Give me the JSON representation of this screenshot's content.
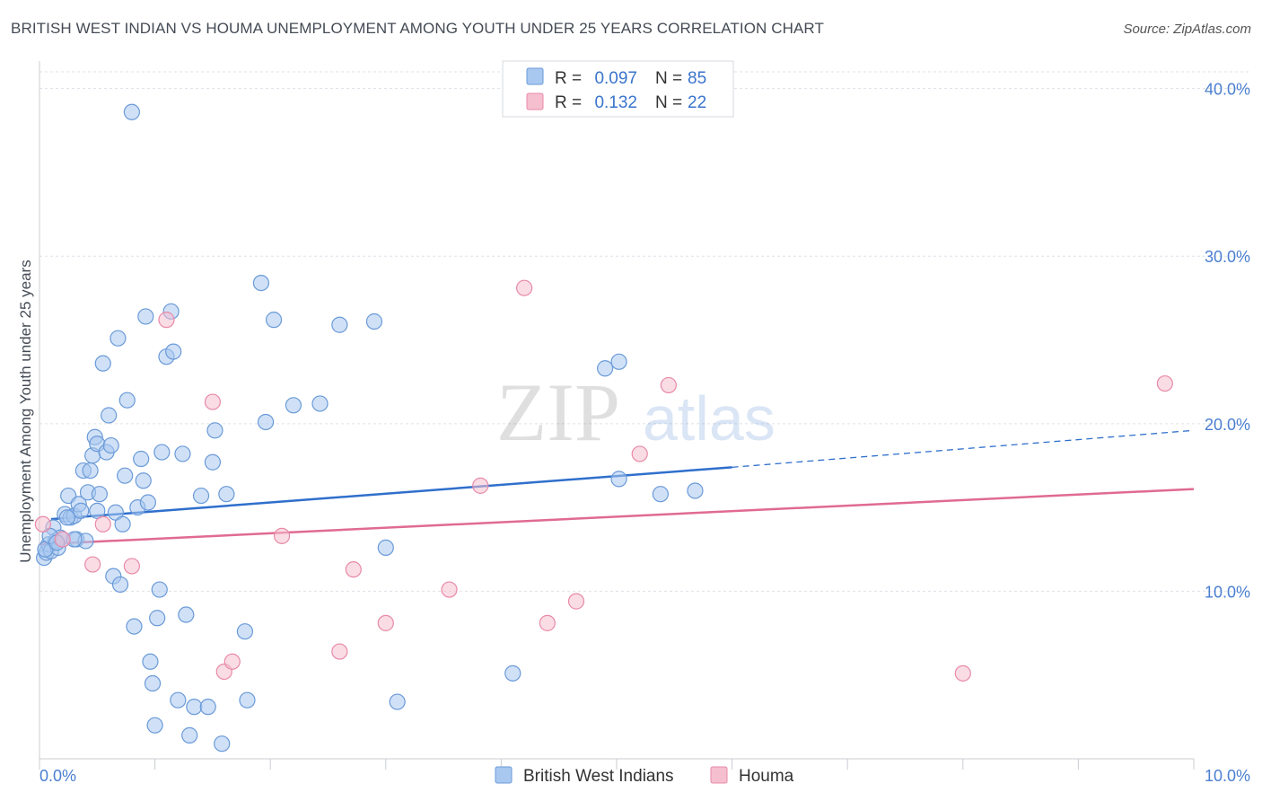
{
  "title": "BRITISH WEST INDIAN VS HOUMA UNEMPLOYMENT AMONG YOUTH UNDER 25 YEARS CORRELATION CHART",
  "source": "Source: ZipAtlas.com",
  "watermark": {
    "zip": "ZIP",
    "atlas": "atlas"
  },
  "colors": {
    "blue_fill": "#a9c8f0",
    "blue_stroke": "#6a9ad8",
    "blue_line": "#2f6fcc",
    "pink_fill": "#f6bfd0",
    "pink_stroke": "#e88aa8",
    "pink_line": "#e06a92",
    "grid": "#dde1e8",
    "label": "#4a7fd0"
  },
  "legend": {
    "rows": [
      {
        "r_label": "R = ",
        "r_value": "0.097",
        "n_label": "N = ",
        "n_value": "85"
      },
      {
        "r_label": "R = ",
        "r_value": "0.132",
        "n_label": "N = ",
        "n_value": "22"
      }
    ]
  },
  "chart_data": {
    "type": "scatter",
    "title": "BRITISH WEST INDIAN VS HOUMA UNEMPLOYMENT AMONG YOUTH UNDER 25 YEARS CORRELATION CHART",
    "xlabel": "",
    "ylabel": "Unemployment Among Youth under 25 years",
    "xlim": [
      0,
      10
    ],
    "ylim": [
      0,
      41
    ],
    "x_tick_labels": [
      "0.0%",
      "10.0%"
    ],
    "y_ticks": [
      10,
      20,
      30,
      40
    ],
    "y_tick_labels": [
      "10.0%",
      "20.0%",
      "30.0%",
      "40.0%"
    ],
    "grid": true,
    "legend_position": "bottom-center",
    "series": [
      {
        "name": "British West Indians",
        "r": 0.097,
        "n": 85,
        "trend": {
          "x0": 0.1,
          "y0": 14.3,
          "x1": 6.0,
          "y1": 17.4,
          "x_dash_end": 10.0,
          "y_dash_end": 19.6
        },
        "points": [
          [
            0.04,
            12.0
          ],
          [
            0.06,
            12.3
          ],
          [
            0.08,
            12.8
          ],
          [
            0.1,
            12.4
          ],
          [
            0.12,
            13.8
          ],
          [
            0.14,
            13.0
          ],
          [
            0.16,
            12.6
          ],
          [
            0.18,
            13.2
          ],
          [
            0.2,
            13.1
          ],
          [
            0.22,
            14.6
          ],
          [
            0.25,
            15.7
          ],
          [
            0.27,
            14.4
          ],
          [
            0.3,
            14.5
          ],
          [
            0.32,
            13.1
          ],
          [
            0.34,
            15.2
          ],
          [
            0.36,
            14.8
          ],
          [
            0.38,
            17.2
          ],
          [
            0.4,
            13.0
          ],
          [
            0.42,
            15.9
          ],
          [
            0.44,
            17.2
          ],
          [
            0.46,
            18.1
          ],
          [
            0.48,
            19.2
          ],
          [
            0.5,
            18.8
          ],
          [
            0.52,
            15.8
          ],
          [
            0.55,
            23.6
          ],
          [
            0.58,
            18.3
          ],
          [
            0.6,
            20.5
          ],
          [
            0.62,
            18.7
          ],
          [
            0.64,
            10.9
          ],
          [
            0.66,
            14.7
          ],
          [
            0.68,
            25.1
          ],
          [
            0.7,
            10.4
          ],
          [
            0.72,
            14.0
          ],
          [
            0.74,
            16.9
          ],
          [
            0.76,
            21.4
          ],
          [
            0.8,
            38.6
          ],
          [
            0.82,
            7.9
          ],
          [
            0.85,
            15.0
          ],
          [
            0.88,
            17.9
          ],
          [
            0.9,
            16.6
          ],
          [
            0.92,
            26.4
          ],
          [
            0.94,
            15.3
          ],
          [
            0.96,
            5.8
          ],
          [
            0.98,
            4.5
          ],
          [
            1.0,
            2.0
          ],
          [
            1.02,
            8.4
          ],
          [
            1.04,
            10.1
          ],
          [
            1.06,
            18.3
          ],
          [
            1.1,
            24.0
          ],
          [
            1.14,
            26.7
          ],
          [
            1.16,
            24.3
          ],
          [
            1.2,
            3.5
          ],
          [
            1.24,
            18.2
          ],
          [
            1.27,
            8.6
          ],
          [
            1.3,
            1.4
          ],
          [
            1.34,
            3.1
          ],
          [
            1.4,
            15.7
          ],
          [
            1.46,
            3.1
          ],
          [
            1.5,
            17.7
          ],
          [
            1.52,
            19.6
          ],
          [
            1.58,
            0.9
          ],
          [
            1.62,
            15.8
          ],
          [
            1.78,
            7.6
          ],
          [
            1.8,
            3.5
          ],
          [
            1.92,
            28.4
          ],
          [
            1.96,
            20.1
          ],
          [
            2.03,
            26.2
          ],
          [
            2.2,
            21.1
          ],
          [
            2.43,
            21.2
          ],
          [
            2.6,
            25.9
          ],
          [
            2.9,
            26.1
          ],
          [
            3.0,
            12.6
          ],
          [
            3.1,
            3.4
          ],
          [
            4.1,
            5.1
          ],
          [
            4.9,
            23.3
          ],
          [
            5.02,
            23.7
          ],
          [
            5.02,
            16.7
          ],
          [
            5.38,
            15.8
          ],
          [
            5.68,
            16.0
          ],
          [
            0.05,
            12.5
          ],
          [
            0.09,
            13.3
          ],
          [
            0.15,
            12.9
          ],
          [
            0.24,
            14.4
          ],
          [
            0.3,
            13.1
          ],
          [
            0.5,
            14.8
          ]
        ]
      },
      {
        "name": "Houma",
        "r": 0.132,
        "n": 22,
        "trend": {
          "x0": 0.0,
          "y0": 12.8,
          "x1": 10.0,
          "y1": 16.1
        },
        "points": [
          [
            0.03,
            14.0
          ],
          [
            0.2,
            13.1
          ],
          [
            0.46,
            11.6
          ],
          [
            0.55,
            14.0
          ],
          [
            0.8,
            11.5
          ],
          [
            1.1,
            26.2
          ],
          [
            1.5,
            21.3
          ],
          [
            1.6,
            5.2
          ],
          [
            1.67,
            5.8
          ],
          [
            2.1,
            13.3
          ],
          [
            2.6,
            6.4
          ],
          [
            2.72,
            11.3
          ],
          [
            3.0,
            8.1
          ],
          [
            3.55,
            10.1
          ],
          [
            3.82,
            16.3
          ],
          [
            4.2,
            28.1
          ],
          [
            4.4,
            8.1
          ],
          [
            4.65,
            9.4
          ],
          [
            5.2,
            18.2
          ],
          [
            5.45,
            22.3
          ],
          [
            8.0,
            5.1
          ],
          [
            9.75,
            22.4
          ]
        ]
      }
    ]
  }
}
